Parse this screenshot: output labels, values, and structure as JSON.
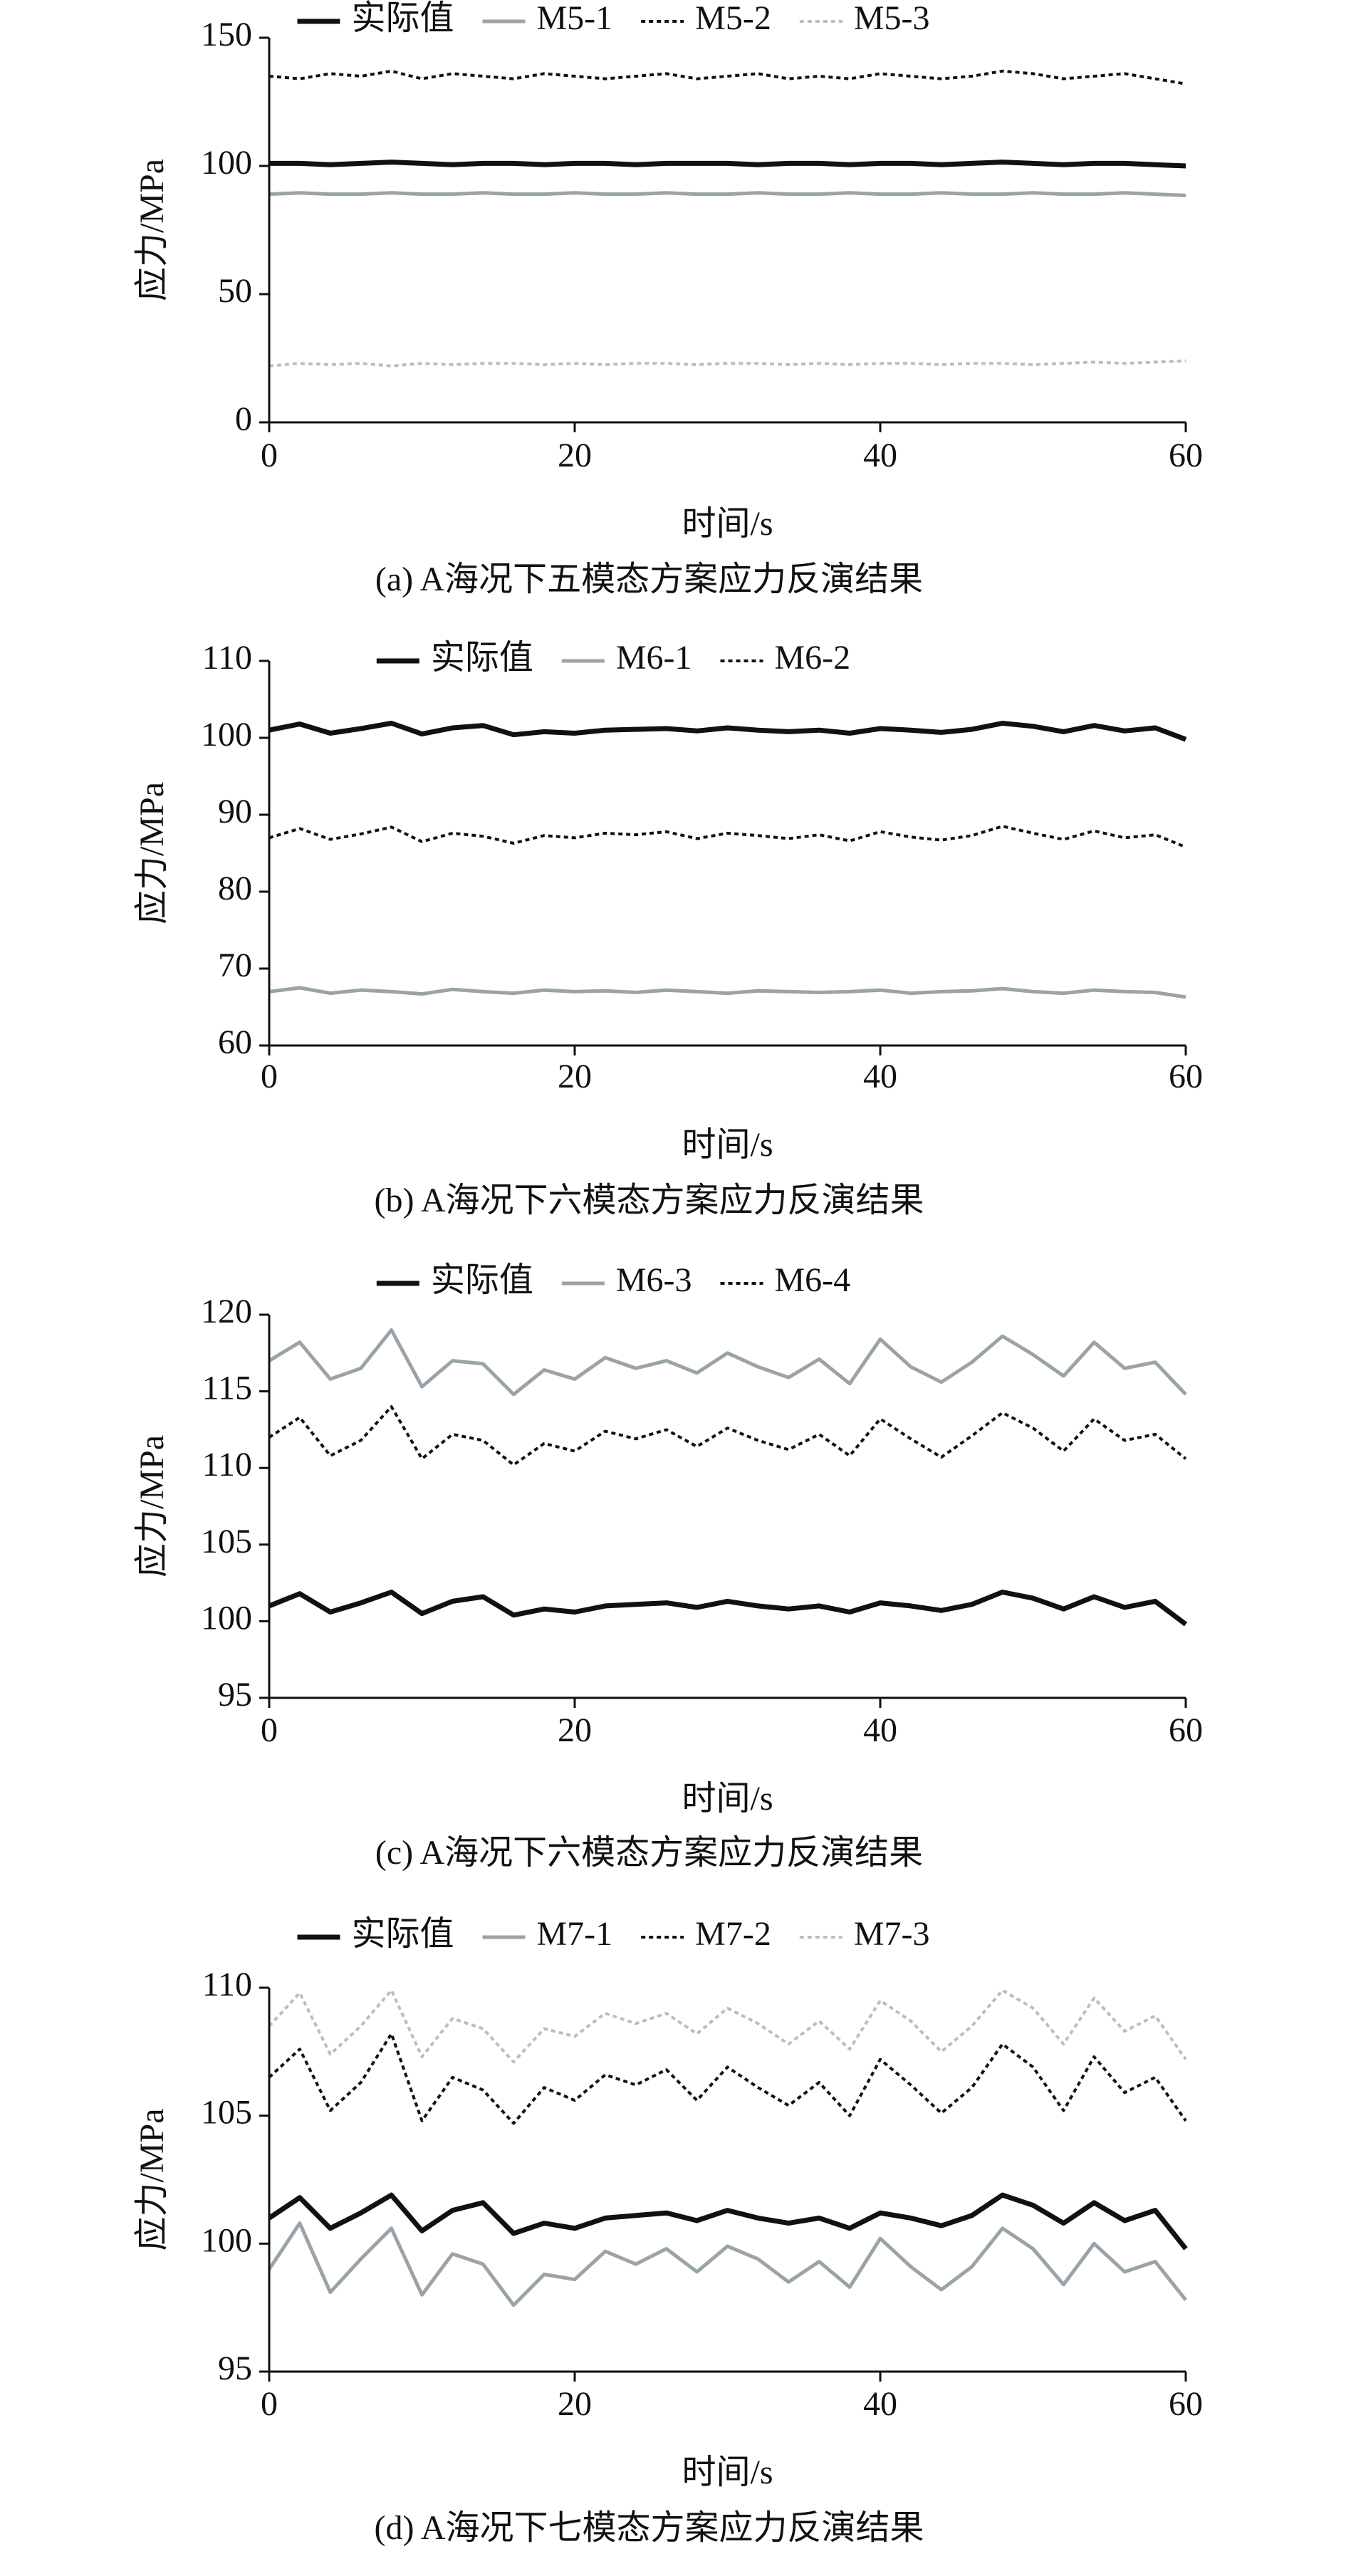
{
  "chart_data": [
    {
      "type": "line",
      "caption": "(a) A海况下五模态方案应力反演结果",
      "xlabel": "时间/s",
      "ylabel": "应力/MPa",
      "xlim": [
        0,
        60
      ],
      "xticks": [
        0,
        20,
        40,
        60
      ],
      "ylim": [
        0,
        150
      ],
      "yticks": [
        0,
        50,
        100,
        150
      ],
      "legend": "top",
      "x": [
        0,
        2,
        4,
        6,
        8,
        10,
        12,
        14,
        16,
        18,
        20,
        22,
        24,
        26,
        28,
        30,
        32,
        34,
        36,
        38,
        40,
        42,
        44,
        46,
        48,
        50,
        52,
        54,
        56,
        58,
        60
      ],
      "series": [
        {
          "name": "实际值",
          "color": "#111111",
          "style": "thick",
          "values": [
            101,
            101,
            100.5,
            101,
            101.5,
            101,
            100.5,
            101,
            101,
            100.5,
            101,
            101,
            100.5,
            101,
            101,
            101,
            100.5,
            101,
            101,
            100.5,
            101,
            101,
            100.5,
            101,
            101.5,
            101,
            100.5,
            101,
            101,
            100.5,
            100
          ]
        },
        {
          "name": "M5-1",
          "color": "#9aa3a8",
          "style": "solid",
          "values": [
            89,
            89.5,
            89,
            89,
            89.5,
            89,
            89,
            89.5,
            89,
            89,
            89.5,
            89,
            89,
            89.5,
            89,
            89,
            89.5,
            89,
            89,
            89.5,
            89,
            89,
            89.5,
            89,
            89,
            89.5,
            89,
            89,
            89.5,
            89,
            88.5
          ]
        },
        {
          "name": "M5-2",
          "color": "#111111",
          "style": "dotted",
          "values": [
            135,
            134,
            136,
            135,
            137,
            134,
            136,
            135,
            134,
            136,
            135,
            134,
            135,
            136,
            134,
            135,
            136,
            134,
            135,
            134,
            136,
            135,
            134,
            135,
            137,
            136,
            134,
            135,
            136,
            134,
            132
          ]
        },
        {
          "name": "M5-3",
          "color": "#b8bec2",
          "style": "dotted",
          "values": [
            22,
            23,
            22.5,
            23,
            22,
            23,
            22.5,
            23,
            23,
            22.5,
            23,
            22.5,
            23,
            23,
            22.5,
            23,
            23,
            22.5,
            23,
            22.5,
            23,
            23,
            22.5,
            23,
            23,
            22.5,
            23,
            23.5,
            23,
            23.5,
            24
          ]
        }
      ]
    },
    {
      "type": "line",
      "caption": "(b) A海况下六模态方案应力反演结果",
      "xlabel": "时间/s",
      "ylabel": "应力/MPa",
      "xlim": [
        0,
        60
      ],
      "xticks": [
        0,
        20,
        40,
        60
      ],
      "ylim": [
        60,
        110
      ],
      "yticks": [
        60,
        70,
        80,
        90,
        100,
        110
      ],
      "legend": "top",
      "x": [
        0,
        2,
        4,
        6,
        8,
        10,
        12,
        14,
        16,
        18,
        20,
        22,
        24,
        26,
        28,
        30,
        32,
        34,
        36,
        38,
        40,
        42,
        44,
        46,
        48,
        50,
        52,
        54,
        56,
        58,
        60
      ],
      "series": [
        {
          "name": "实际值",
          "color": "#111111",
          "style": "thick",
          "values": [
            101,
            101.8,
            100.6,
            101.2,
            101.9,
            100.5,
            101.3,
            101.6,
            100.4,
            100.8,
            100.6,
            101,
            101.1,
            101.2,
            100.9,
            101.3,
            101,
            100.8,
            101,
            100.6,
            101.2,
            101,
            100.7,
            101.1,
            101.9,
            101.5,
            100.8,
            101.6,
            100.9,
            101.3,
            99.8
          ]
        },
        {
          "name": "M6-1",
          "color": "#9aa3a8",
          "style": "solid",
          "values": [
            67,
            67.5,
            66.8,
            67.2,
            67,
            66.7,
            67.3,
            67,
            66.8,
            67.2,
            67,
            67.1,
            66.9,
            67.2,
            67,
            66.8,
            67.1,
            67,
            66.9,
            67,
            67.2,
            66.8,
            67,
            67.1,
            67.4,
            67,
            66.8,
            67.2,
            67,
            66.9,
            66.3
          ]
        },
        {
          "name": "M6-2",
          "color": "#111111",
          "style": "dotted",
          "values": [
            87,
            88.2,
            86.8,
            87.5,
            88.4,
            86.5,
            87.6,
            87.2,
            86.3,
            87.3,
            87,
            87.6,
            87.4,
            87.8,
            86.9,
            87.6,
            87.3,
            86.9,
            87.4,
            86.6,
            87.8,
            87.1,
            86.7,
            87.3,
            88.5,
            87.6,
            86.8,
            87.9,
            87,
            87.4,
            85.8
          ]
        }
      ]
    },
    {
      "type": "line",
      "caption": "(c) A海况下六模态方案应力反演结果",
      "xlabel": "时间/s",
      "ylabel": "应力/MPa",
      "xlim": [
        0,
        60
      ],
      "xticks": [
        0,
        20,
        40,
        60
      ],
      "ylim": [
        95,
        120
      ],
      "yticks": [
        95,
        100,
        105,
        110,
        115,
        120
      ],
      "legend": "top",
      "x": [
        0,
        2,
        4,
        6,
        8,
        10,
        12,
        14,
        16,
        18,
        20,
        22,
        24,
        26,
        28,
        30,
        32,
        34,
        36,
        38,
        40,
        42,
        44,
        46,
        48,
        50,
        52,
        54,
        56,
        58,
        60
      ],
      "series": [
        {
          "name": "实际值",
          "color": "#111111",
          "style": "thick",
          "values": [
            101,
            101.8,
            100.6,
            101.2,
            101.9,
            100.5,
            101.3,
            101.6,
            100.4,
            100.8,
            100.6,
            101,
            101.1,
            101.2,
            100.9,
            101.3,
            101,
            100.8,
            101,
            100.6,
            101.2,
            101,
            100.7,
            101.1,
            101.9,
            101.5,
            100.8,
            101.6,
            100.9,
            101.3,
            99.8
          ]
        },
        {
          "name": "M6-3",
          "color": "#9aa3a8",
          "style": "solid",
          "values": [
            117,
            118.2,
            115.8,
            116.5,
            119,
            115.3,
            117,
            116.8,
            114.8,
            116.4,
            115.8,
            117.2,
            116.5,
            117,
            116.2,
            117.5,
            116.6,
            115.9,
            117.1,
            115.5,
            118.4,
            116.6,
            115.6,
            116.9,
            118.6,
            117.4,
            116,
            118.2,
            116.5,
            116.9,
            114.8
          ]
        },
        {
          "name": "M6-4",
          "color": "#111111",
          "style": "dotted",
          "values": [
            112,
            113.3,
            110.8,
            111.8,
            114,
            110.6,
            112.2,
            111.8,
            110.2,
            111.6,
            111.1,
            112.4,
            111.9,
            112.5,
            111.4,
            112.6,
            111.8,
            111.2,
            112.2,
            110.8,
            113.2,
            111.9,
            110.7,
            112.1,
            113.6,
            112.6,
            111.1,
            113.2,
            111.8,
            112.2,
            110.6
          ]
        }
      ]
    },
    {
      "type": "line",
      "caption": "(d) A海况下七模态方案应力反演结果",
      "xlabel": "时间/s",
      "ylabel": "应力/MPa",
      "xlim": [
        0,
        60
      ],
      "xticks": [
        0,
        20,
        40,
        60
      ],
      "ylim": [
        95,
        110
      ],
      "yticks": [
        95,
        100,
        105,
        110
      ],
      "legend": "top",
      "x": [
        0,
        2,
        4,
        6,
        8,
        10,
        12,
        14,
        16,
        18,
        20,
        22,
        24,
        26,
        28,
        30,
        32,
        34,
        36,
        38,
        40,
        42,
        44,
        46,
        48,
        50,
        52,
        54,
        56,
        58,
        60
      ],
      "series": [
        {
          "name": "实际值",
          "color": "#111111",
          "style": "thick",
          "values": [
            101,
            101.8,
            100.6,
            101.2,
            101.9,
            100.5,
            101.3,
            101.6,
            100.4,
            100.8,
            100.6,
            101,
            101.1,
            101.2,
            100.9,
            101.3,
            101,
            100.8,
            101,
            100.6,
            101.2,
            101,
            100.7,
            101.1,
            101.9,
            101.5,
            100.8,
            101.6,
            100.9,
            101.3,
            99.8
          ]
        },
        {
          "name": "M7-1",
          "color": "#9aa3a8",
          "style": "solid",
          "values": [
            99,
            100.8,
            98.1,
            99.4,
            100.6,
            98,
            99.6,
            99.2,
            97.6,
            98.8,
            98.6,
            99.7,
            99.2,
            99.8,
            98.9,
            99.9,
            99.4,
            98.5,
            99.3,
            98.3,
            100.2,
            99.1,
            98.2,
            99.1,
            100.6,
            99.8,
            98.4,
            100,
            98.9,
            99.3,
            97.8
          ]
        },
        {
          "name": "M7-2",
          "color": "#111111",
          "style": "dotted",
          "values": [
            106.5,
            107.6,
            105.2,
            106.3,
            108.2,
            104.8,
            106.5,
            106,
            104.7,
            106.1,
            105.6,
            106.6,
            106.2,
            106.8,
            105.6,
            106.9,
            106.1,
            105.4,
            106.3,
            105,
            107.2,
            106.2,
            105.1,
            106.1,
            107.8,
            106.9,
            105.2,
            107.3,
            105.9,
            106.5,
            104.8
          ]
        },
        {
          "name": "M7-3",
          "color": "#b8bec2",
          "style": "dotted",
          "values": [
            108.5,
            109.8,
            107.4,
            108.5,
            109.9,
            107.3,
            108.8,
            108.4,
            107.1,
            108.4,
            108.1,
            109,
            108.6,
            109,
            108.2,
            109.2,
            108.6,
            107.8,
            108.7,
            107.6,
            109.5,
            108.7,
            107.5,
            108.5,
            109.9,
            109.2,
            107.8,
            109.6,
            108.3,
            108.9,
            107.2
          ]
        }
      ]
    }
  ]
}
